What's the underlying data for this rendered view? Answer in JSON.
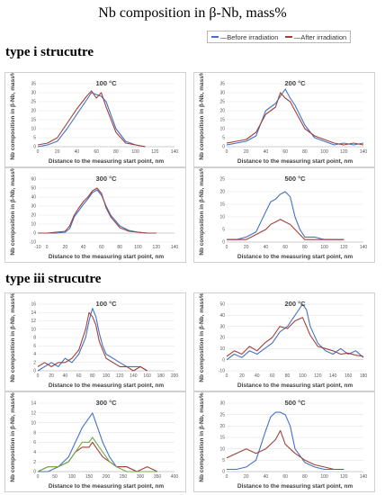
{
  "title": "Nb composition in β-Nb, mass%",
  "legend": {
    "before_label": "—Before irradiation",
    "after_label": "—After irradiation",
    "before_color": "#4472C4",
    "after_color": "#A0413C"
  },
  "sections": {
    "type_i": "type i strucutre",
    "type_iii": "type iii strucutre"
  },
  "chart_data": [
    {
      "type": "line",
      "title": "100 °C",
      "xlabel": "Distance to the measuring start point, nm",
      "ylabel": "Nb composition in β-Nb, mass%",
      "xlim": [
        0,
        140
      ],
      "ylim": [
        0,
        35
      ],
      "xticks": [
        0,
        20,
        40,
        60,
        80,
        100,
        120,
        140
      ],
      "yticks": [
        0,
        5,
        10,
        15,
        20,
        25,
        30,
        35
      ],
      "series": [
        {
          "color": "#4472C4",
          "x": [
            0,
            10,
            20,
            30,
            40,
            50,
            55,
            60,
            65,
            70,
            80,
            90,
            100,
            110
          ],
          "y": [
            0,
            1,
            3,
            10,
            18,
            26,
            30,
            29,
            28,
            25,
            10,
            3,
            1,
            0
          ]
        },
        {
          "color": "#A0413C",
          "x": [
            0,
            10,
            20,
            30,
            40,
            50,
            55,
            60,
            65,
            70,
            80,
            90,
            100,
            110
          ],
          "y": [
            1,
            2,
            5,
            13,
            21,
            28,
            31,
            27,
            30,
            22,
            8,
            2,
            1,
            0
          ]
        }
      ]
    },
    {
      "type": "line",
      "title": "200 °C",
      "xlabel": "Distance to the measuring start point, nm",
      "ylabel": "Nb composition in β-Nb, mass%",
      "xlim": [
        0,
        140
      ],
      "ylim": [
        0,
        35
      ],
      "xticks": [
        0,
        20,
        40,
        60,
        80,
        100,
        120,
        140
      ],
      "yticks": [
        0,
        5,
        10,
        15,
        20,
        25,
        30,
        35
      ],
      "series": [
        {
          "color": "#4472C4",
          "x": [
            0,
            10,
            20,
            30,
            40,
            50,
            55,
            60,
            65,
            70,
            80,
            90,
            100,
            110,
            120,
            130,
            140
          ],
          "y": [
            1,
            2,
            3,
            6,
            20,
            24,
            28,
            32,
            27,
            23,
            12,
            5,
            3,
            1,
            2,
            1,
            2
          ]
        },
        {
          "color": "#A0413C",
          "x": [
            0,
            10,
            20,
            30,
            40,
            50,
            55,
            60,
            65,
            70,
            80,
            90,
            100,
            110,
            120,
            130,
            140
          ],
          "y": [
            2,
            3,
            4,
            8,
            18,
            22,
            30,
            27,
            25,
            20,
            10,
            6,
            4,
            2,
            1,
            2,
            1
          ]
        }
      ]
    },
    {
      "type": "line",
      "title": "300 °C",
      "xlabel": "Distance to the measuring start point, nm",
      "ylabel": "Nb composition in β-Nb, mass%",
      "xlim": [
        -10,
        140
      ],
      "ylim": [
        -10,
        60
      ],
      "xticks": [
        -10,
        0,
        20,
        40,
        60,
        80,
        100,
        120,
        140
      ],
      "yticks": [
        -10,
        0,
        10,
        20,
        30,
        40,
        50,
        60
      ],
      "series": [
        {
          "color": "#4472C4",
          "x": [
            -10,
            0,
            10,
            20,
            25,
            30,
            35,
            40,
            45,
            50,
            55,
            60,
            65,
            70,
            80,
            90,
            100,
            110,
            120
          ],
          "y": [
            0,
            0,
            0,
            1,
            5,
            18,
            25,
            32,
            38,
            45,
            48,
            42,
            30,
            20,
            8,
            3,
            1,
            0,
            0
          ]
        },
        {
          "color": "#A0413C",
          "x": [
            -10,
            0,
            10,
            20,
            25,
            30,
            35,
            40,
            45,
            50,
            55,
            60,
            65,
            70,
            80,
            90,
            100,
            110,
            120
          ],
          "y": [
            0,
            0,
            1,
            2,
            8,
            20,
            28,
            35,
            40,
            47,
            50,
            44,
            28,
            18,
            6,
            2,
            1,
            0,
            0
          ]
        }
      ]
    },
    {
      "type": "line",
      "title": "500 °C",
      "xlabel": "Distance to the measuring start point, nm",
      "ylabel": "Nb composition in β-Nb, mass%",
      "xlim": [
        0,
        140
      ],
      "ylim": [
        0,
        25
      ],
      "xticks": [
        0,
        20,
        40,
        60,
        80,
        100,
        120,
        140
      ],
      "yticks": [
        0,
        5,
        10,
        15,
        20,
        25
      ],
      "series": [
        {
          "color": "#4472C4",
          "x": [
            0,
            10,
            20,
            30,
            40,
            45,
            50,
            55,
            60,
            65,
            70,
            75,
            80,
            90,
            100,
            110,
            120
          ],
          "y": [
            1,
            1,
            2,
            4,
            12,
            16,
            17,
            19,
            20,
            18,
            10,
            5,
            2,
            2,
            1,
            1,
            1
          ]
        },
        {
          "color": "#A0413C",
          "x": [
            0,
            10,
            20,
            30,
            40,
            45,
            50,
            55,
            60,
            65,
            70,
            75,
            80,
            90,
            100,
            110,
            120
          ],
          "y": [
            1,
            1,
            1,
            3,
            5,
            7,
            8,
            9,
            8,
            7,
            5,
            3,
            1,
            1,
            1,
            1,
            1
          ]
        }
      ]
    },
    {
      "type": "line",
      "title": "100 °C",
      "xlabel": "Distance to the measuring start point, nm",
      "ylabel": "Nb composition in β-Nb, mass%",
      "xlim": [
        0,
        200
      ],
      "ylim": [
        0,
        16
      ],
      "xticks": [
        0,
        20,
        40,
        60,
        80,
        100,
        120,
        140,
        160,
        180,
        200
      ],
      "yticks": [
        0,
        2,
        4,
        6,
        8,
        10,
        12,
        14,
        16
      ],
      "series": [
        {
          "color": "#4472C4",
          "x": [
            0,
            10,
            20,
            30,
            40,
            50,
            60,
            70,
            75,
            80,
            85,
            90,
            95,
            100,
            110,
            120,
            130,
            140,
            150,
            160
          ],
          "y": [
            0,
            1,
            2,
            1,
            3,
            2,
            4,
            8,
            12,
            15,
            13,
            9,
            6,
            4,
            3,
            2,
            1,
            1,
            1,
            0
          ]
        },
        {
          "color": "#A0413C",
          "x": [
            0,
            10,
            20,
            30,
            40,
            50,
            60,
            70,
            75,
            80,
            85,
            90,
            95,
            100,
            110,
            120,
            130,
            140,
            150,
            160
          ],
          "y": [
            1,
            2,
            1,
            2,
            2,
            3,
            5,
            10,
            14,
            13,
            11,
            7,
            5,
            3,
            2,
            1,
            1,
            0,
            1,
            0
          ]
        }
      ]
    },
    {
      "type": "line",
      "title": "200 °C",
      "xlabel": "Distance to the measuring start point, nm",
      "ylabel": "Nb composition in β-Nb, mass%",
      "xlim": [
        0,
        180
      ],
      "ylim": [
        -10,
        50
      ],
      "xticks": [
        0,
        20,
        40,
        60,
        80,
        100,
        120,
        140,
        160,
        180
      ],
      "yticks": [
        -10,
        0,
        10,
        20,
        30,
        40,
        50
      ],
      "series": [
        {
          "color": "#4472C4",
          "x": [
            0,
            10,
            20,
            30,
            40,
            50,
            60,
            70,
            80,
            90,
            100,
            105,
            110,
            120,
            130,
            140,
            150,
            160,
            170,
            180
          ],
          "y": [
            0,
            5,
            2,
            8,
            5,
            10,
            15,
            25,
            30,
            40,
            50,
            45,
            30,
            15,
            8,
            5,
            10,
            5,
            8,
            2
          ]
        },
        {
          "color": "#A0413C",
          "x": [
            0,
            10,
            20,
            30,
            40,
            50,
            60,
            70,
            80,
            90,
            100,
            105,
            110,
            120,
            130,
            140,
            150,
            160,
            170,
            180
          ],
          "y": [
            3,
            8,
            5,
            12,
            8,
            15,
            20,
            30,
            28,
            35,
            38,
            30,
            22,
            12,
            10,
            8,
            5,
            6,
            4,
            3
          ]
        }
      ]
    },
    {
      "type": "line",
      "title": "300 °C",
      "xlabel": "Distance to the measuring start point, nm",
      "ylabel": "Nb composition in β-Nb, mass%",
      "xlim": [
        0,
        400
      ],
      "ylim": [
        0,
        14
      ],
      "xticks": [
        0,
        50,
        100,
        150,
        200,
        250,
        300,
        350,
        400
      ],
      "yticks": [
        0,
        2,
        4,
        6,
        8,
        10,
        12,
        14
      ],
      "series": [
        {
          "color": "#4472C4",
          "x": [
            0,
            30,
            60,
            90,
            110,
            130,
            150,
            160,
            170,
            190,
            210,
            230,
            260,
            290,
            320,
            350
          ],
          "y": [
            0,
            0,
            1,
            3,
            6,
            9,
            11,
            12,
            10,
            6,
            3,
            1,
            1,
            0,
            0,
            0
          ]
        },
        {
          "color": "#A0413C",
          "x": [
            0,
            30,
            60,
            90,
            110,
            130,
            150,
            160,
            170,
            190,
            210,
            230,
            260,
            290,
            320,
            350
          ],
          "y": [
            0,
            1,
            1,
            2,
            4,
            5,
            5,
            6,
            5,
            3,
            2,
            1,
            1,
            0,
            1,
            0
          ]
        },
        {
          "color": "#70AD47",
          "x": [
            0,
            30,
            60,
            90,
            110,
            130,
            150,
            160,
            170,
            190,
            210,
            230,
            260,
            290,
            320,
            350
          ],
          "y": [
            0,
            1,
            1,
            2,
            4,
            6,
            6,
            7,
            6,
            4,
            2,
            1,
            0,
            0,
            0,
            0
          ]
        }
      ]
    },
    {
      "type": "line",
      "title": "500 °C",
      "xlabel": "Distance to the measuring start point, nm",
      "ylabel": "Nb composition in β-Nb, mass%",
      "xlim": [
        0,
        140
      ],
      "ylim": [
        0,
        30
      ],
      "xticks": [
        0,
        20,
        40,
        60,
        80,
        100,
        120,
        140
      ],
      "yticks": [
        0,
        5,
        10,
        15,
        20,
        25,
        30
      ],
      "series": [
        {
          "color": "#4472C4",
          "x": [
            0,
            10,
            20,
            30,
            40,
            45,
            50,
            55,
            60,
            65,
            70,
            80,
            90,
            100,
            110,
            120
          ],
          "y": [
            1,
            1,
            2,
            5,
            18,
            24,
            26,
            26,
            25,
            20,
            10,
            4,
            2,
            1,
            1,
            1
          ]
        },
        {
          "color": "#A0413C",
          "x": [
            0,
            10,
            20,
            30,
            40,
            45,
            50,
            55,
            60,
            65,
            70,
            80,
            90,
            100,
            110,
            120
          ],
          "y": [
            6,
            8,
            10,
            8,
            10,
            12,
            14,
            18,
            12,
            10,
            8,
            5,
            3,
            2,
            1,
            1
          ]
        }
      ]
    }
  ]
}
